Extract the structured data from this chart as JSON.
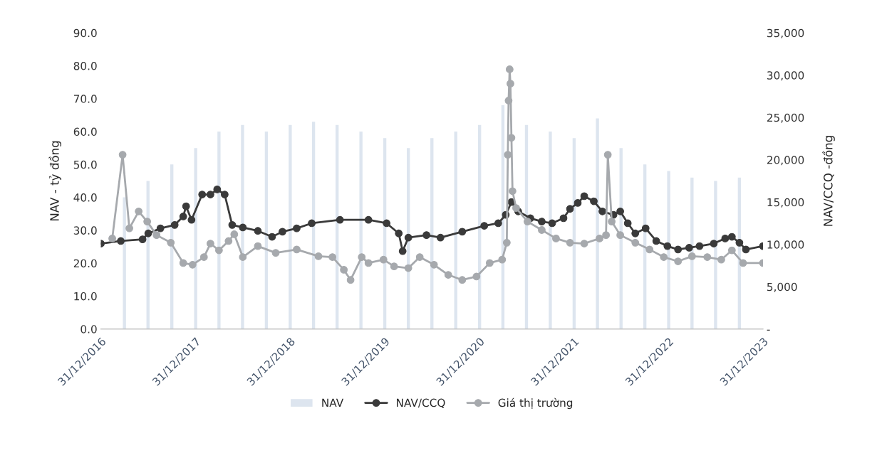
{
  "chart_data": {
    "type": "line",
    "ylabel": "NAV - tỷ đồng",
    "y2label": "NAV/CCQ -đồng",
    "xlim": [
      "2016-12-31",
      "2023-12-31"
    ],
    "xticks": [
      {
        "value": "2016-12-31",
        "label": "31/12/2016"
      },
      {
        "value": "2017-12-31",
        "label": "31/12/2017"
      },
      {
        "value": "2018-12-31",
        "label": "31/12/2018"
      },
      {
        "value": "2019-12-31",
        "label": "31/12/2019"
      },
      {
        "value": "2020-12-31",
        "label": "31/12/2020"
      },
      {
        "value": "2021-12-31",
        "label": "31/12/2021"
      },
      {
        "value": "2022-12-31",
        "label": "31/12/2022"
      },
      {
        "value": "2023-12-31",
        "label": "31/12/2023"
      }
    ],
    "ylim": [
      0,
      90
    ],
    "yticks": [
      {
        "value": 0,
        "label": "0.0"
      },
      {
        "value": 10,
        "label": "10.0"
      },
      {
        "value": 20,
        "label": "20.0"
      },
      {
        "value": 30,
        "label": "30.0"
      },
      {
        "value": 40,
        "label": "40.0"
      },
      {
        "value": 50,
        "label": "50.0"
      },
      {
        "value": 60,
        "label": "60.0"
      },
      {
        "value": 70,
        "label": "70.0"
      },
      {
        "value": 80,
        "label": "80.0"
      },
      {
        "value": 90,
        "label": "90.0"
      }
    ],
    "y2lim": [
      0,
      35000
    ],
    "y2ticks": [
      {
        "value": 0,
        "label": "-"
      },
      {
        "value": 5000,
        "label": "5,000"
      },
      {
        "value": 10000,
        "label": "10,000"
      },
      {
        "value": 15000,
        "label": "15,000"
      },
      {
        "value": 20000,
        "label": "20,000"
      },
      {
        "value": 25000,
        "label": "25,000"
      },
      {
        "value": 30000,
        "label": "30,000"
      },
      {
        "value": 35000,
        "label": "35,000"
      }
    ],
    "legend": "bottom",
    "series": [
      {
        "name": "NAV",
        "type": "bar",
        "color": "#dde5ef",
        "x": [
          "2017-04-01",
          "2017-07-01",
          "2017-10-01",
          "2018-01-01",
          "2018-04-01",
          "2018-07-01",
          "2018-10-01",
          "2019-01-01",
          "2019-04-01",
          "2019-07-01",
          "2019-10-01",
          "2020-01-01",
          "2020-04-01",
          "2020-07-01",
          "2020-10-01",
          "2021-01-01",
          "2021-04-01",
          "2021-07-01",
          "2021-10-01",
          "2022-01-01",
          "2022-04-01",
          "2022-07-01",
          "2022-10-01",
          "2023-01-01",
          "2023-04-01",
          "2023-07-01",
          "2023-10-01"
        ],
        "values": [
          40,
          45,
          50,
          55,
          60,
          62,
          60,
          62,
          63,
          62,
          60,
          58,
          55,
          58,
          60,
          62,
          68,
          62,
          60,
          58,
          64,
          55,
          50,
          48,
          46,
          45,
          46
        ]
      },
      {
        "name": "NAV/CCQ",
        "axis": "y2",
        "marker": "circle",
        "color": "#3a3a3a",
        "x": [
          "2016-12-31",
          "2017-03-18",
          "2017-06-10",
          "2017-07-02",
          "2017-08-18",
          "2017-10-12",
          "2017-11-14",
          "2017-11-25",
          "2017-12-16",
          "2018-01-26",
          "2018-02-27",
          "2018-03-25",
          "2018-04-23",
          "2018-05-22",
          "2018-07-02",
          "2018-08-29",
          "2018-10-23",
          "2018-12-02",
          "2019-01-26",
          "2019-03-25",
          "2019-07-12",
          "2019-10-30",
          "2020-01-08",
          "2020-02-24",
          "2020-03-10",
          "2020-04-01",
          "2020-06-10",
          "2020-08-03",
          "2020-10-26",
          "2021-01-19",
          "2021-03-14",
          "2021-04-12",
          "2021-05-04",
          "2021-05-30",
          "2021-07-16",
          "2021-08-29",
          "2021-10-08",
          "2021-11-21",
          "2021-12-16",
          "2022-01-15",
          "2022-02-09",
          "2022-03-18",
          "2022-04-20",
          "2022-06-02",
          "2022-06-28",
          "2022-07-27",
          "2022-08-25",
          "2022-10-04",
          "2022-11-14",
          "2022-12-27",
          "2023-02-06",
          "2023-03-21",
          "2023-04-30",
          "2023-06-24",
          "2023-08-07",
          "2023-09-02",
          "2023-10-01",
          "2023-10-26",
          "2023-12-31"
        ],
        "values": [
          10100,
          10400,
          10600,
          11300,
          11900,
          12300,
          13300,
          14500,
          12900,
          15900,
          15900,
          16500,
          15900,
          12300,
          12000,
          11600,
          10900,
          11500,
          11900,
          12500,
          12900,
          12900,
          12500,
          11300,
          9200,
          10800,
          11100,
          10800,
          11500,
          12200,
          12500,
          13500,
          15000,
          13900,
          13100,
          12700,
          12500,
          13100,
          14200,
          14900,
          15700,
          15100,
          13900,
          13500,
          13900,
          12500,
          11300,
          11900,
          10400,
          9800,
          9400,
          9600,
          9800,
          10100,
          10700,
          10900,
          10200,
          9400,
          9800
        ]
      },
      {
        "name": "Giá thị trường",
        "axis": "y2",
        "marker": "circle",
        "color": "#a6a9ad",
        "x": [
          "2017-02-13",
          "2017-03-25",
          "2017-04-20",
          "2017-05-26",
          "2017-06-28",
          "2017-08-03",
          "2017-09-27",
          "2017-11-14",
          "2017-12-20",
          "2018-02-02",
          "2018-02-27",
          "2018-04-01",
          "2018-05-08",
          "2018-05-30",
          "2018-07-02",
          "2018-08-29",
          "2018-11-06",
          "2019-01-26",
          "2019-04-20",
          "2019-06-13",
          "2019-07-27",
          "2019-08-22",
          "2019-10-04",
          "2019-10-30",
          "2019-12-27",
          "2020-02-06",
          "2020-04-01",
          "2020-05-15",
          "2020-07-09",
          "2020-09-02",
          "2020-10-26",
          "2020-12-20",
          "2021-02-09",
          "2021-03-29",
          "2021-04-16",
          "2021-04-20",
          "2021-04-23",
          "2021-04-27",
          "2021-04-30",
          "2021-05-04",
          "2021-05-08",
          "2021-05-22",
          "2021-07-05",
          "2021-08-29",
          "2021-10-23",
          "2021-12-16",
          "2022-02-09",
          "2022-04-09",
          "2022-05-04",
          "2022-05-11",
          "2022-05-26",
          "2022-06-28",
          "2022-08-25",
          "2022-10-19",
          "2022-12-13",
          "2023-02-06",
          "2023-04-01",
          "2023-05-30",
          "2023-07-23",
          "2023-09-02",
          "2023-10-15",
          "2023-12-31"
        ],
        "values": [
          10700,
          20600,
          11900,
          13900,
          12700,
          11100,
          10200,
          7800,
          7600,
          8500,
          10100,
          9300,
          10400,
          11200,
          8500,
          9800,
          9000,
          9400,
          8600,
          8500,
          7000,
          5800,
          8500,
          7800,
          8200,
          7400,
          7200,
          8500,
          7600,
          6400,
          5800,
          6200,
          7800,
          8200,
          10200,
          20600,
          27000,
          30700,
          29000,
          22600,
          16300,
          14300,
          12700,
          11700,
          10700,
          10200,
          10100,
          10700,
          11100,
          20600,
          12700,
          11100,
          10200,
          9400,
          8500,
          8000,
          8600,
          8500,
          8200,
          9300,
          7800,
          7800
        ]
      }
    ]
  }
}
